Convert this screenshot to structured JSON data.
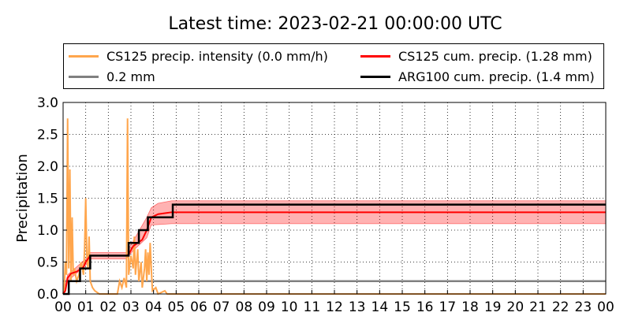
{
  "chart_data": {
    "type": "line",
    "title": "Latest time: 2023-02-21 00:00:00 UTC",
    "ylabel": "Precipitation",
    "xlabel": "",
    "ylim": [
      0,
      3.0
    ],
    "xlim": [
      0,
      24
    ],
    "x_ticks": [
      "00",
      "01",
      "02",
      "03",
      "04",
      "05",
      "06",
      "07",
      "08",
      "09",
      "10",
      "11",
      "12",
      "13",
      "14",
      "15",
      "16",
      "17",
      "18",
      "19",
      "20",
      "21",
      "22",
      "23",
      "00"
    ],
    "y_ticks": [
      "0.0",
      "0.5",
      "1.0",
      "1.5",
      "2.0",
      "2.5",
      "3.0"
    ],
    "grid": true,
    "legend_position": "top",
    "legend": [
      {
        "label": "CS125 precip. intensity (0.0 mm/h)",
        "color": "#ffa64d"
      },
      {
        "label": "CS125 cum. precip. (1.28 mm)",
        "color": "#ff0000"
      },
      {
        "label": "0.2 mm",
        "color": "#808080"
      },
      {
        "label": "ARG100 cum. precip. (1.4 mm)",
        "color": "#000000"
      }
    ],
    "series": [
      {
        "name": "CS125 precip. intensity (0.0 mm/h)",
        "color": "#ffa64d",
        "points": [
          [
            0,
            0
          ],
          [
            0.05,
            0.1
          ],
          [
            0.1,
            0.5
          ],
          [
            0.15,
            0.3
          ],
          [
            0.2,
            2.75
          ],
          [
            0.25,
            0.4
          ],
          [
            0.3,
            1.95
          ],
          [
            0.35,
            0.2
          ],
          [
            0.4,
            1.2
          ],
          [
            0.45,
            0.3
          ],
          [
            0.5,
            0.4
          ],
          [
            0.6,
            0.2
          ],
          [
            0.7,
            0.3
          ],
          [
            0.8,
            0.5
          ],
          [
            0.9,
            0.3
          ],
          [
            0.95,
            0.7
          ],
          [
            1.0,
            1.5
          ],
          [
            1.05,
            0.6
          ],
          [
            1.1,
            0.4
          ],
          [
            1.15,
            0.9
          ],
          [
            1.2,
            0.2
          ],
          [
            1.3,
            0.1
          ],
          [
            1.4,
            0.05
          ],
          [
            1.6,
            0
          ],
          [
            2.4,
            0
          ],
          [
            2.5,
            0.2
          ],
          [
            2.6,
            0.1
          ],
          [
            2.7,
            0.25
          ],
          [
            2.8,
            0.1
          ],
          [
            2.85,
            2.75
          ],
          [
            2.9,
            0.3
          ],
          [
            3.0,
            0.6
          ],
          [
            3.1,
            0.4
          ],
          [
            3.15,
            0.9
          ],
          [
            3.2,
            0.3
          ],
          [
            3.3,
            0.7
          ],
          [
            3.35,
            0.2
          ],
          [
            3.45,
            0.5
          ],
          [
            3.5,
            0.1
          ],
          [
            3.6,
            0.4
          ],
          [
            3.65,
            0.7
          ],
          [
            3.7,
            0.2
          ],
          [
            3.75,
            0.65
          ],
          [
            3.8,
            0.3
          ],
          [
            3.85,
            0.8
          ],
          [
            3.9,
            0.4
          ],
          [
            3.95,
            0.05
          ],
          [
            4.1,
            0.1
          ],
          [
            4.2,
            0
          ],
          [
            4.5,
            0.05
          ],
          [
            4.6,
            0
          ],
          [
            24,
            0
          ]
        ]
      },
      {
        "name": "CS125 cum. precip. (1.28 mm)",
        "color": "#ff0000",
        "points": [
          [
            0,
            0
          ],
          [
            0.1,
            0.05
          ],
          [
            0.2,
            0.25
          ],
          [
            0.35,
            0.32
          ],
          [
            0.6,
            0.35
          ],
          [
            0.9,
            0.42
          ],
          [
            1.0,
            0.5
          ],
          [
            1.2,
            0.6
          ],
          [
            2.8,
            0.6
          ],
          [
            2.9,
            0.62
          ],
          [
            3.1,
            0.75
          ],
          [
            3.5,
            0.85
          ],
          [
            3.7,
            1.0
          ],
          [
            3.9,
            1.2
          ],
          [
            4.2,
            1.25
          ],
          [
            4.6,
            1.27
          ],
          [
            4.8,
            1.28
          ],
          [
            24,
            1.28
          ]
        ],
        "band_lower": [
          [
            0,
            0
          ],
          [
            0.2,
            0.2
          ],
          [
            1.0,
            0.45
          ],
          [
            1.2,
            0.55
          ],
          [
            2.8,
            0.55
          ],
          [
            3.1,
            0.68
          ],
          [
            3.7,
            0.88
          ],
          [
            3.9,
            1.08
          ],
          [
            4.8,
            1.1
          ],
          [
            24,
            1.1
          ]
        ],
        "band_upper": [
          [
            0,
            0
          ],
          [
            0.2,
            0.3
          ],
          [
            1.0,
            0.55
          ],
          [
            1.2,
            0.65
          ],
          [
            2.8,
            0.65
          ],
          [
            3.1,
            0.83
          ],
          [
            3.7,
            1.2
          ],
          [
            3.9,
            1.35
          ],
          [
            4.2,
            1.42
          ],
          [
            4.8,
            1.46
          ],
          [
            24,
            1.46
          ]
        ]
      },
      {
        "name": "0.2 mm",
        "color": "#808080",
        "points": [
          [
            0,
            0.2
          ],
          [
            24,
            0.2
          ]
        ]
      },
      {
        "name": "ARG100 cum. precip. (1.4 mm)",
        "color": "#000000",
        "points": [
          [
            0,
            0
          ],
          [
            0.25,
            0
          ],
          [
            0.25,
            0.2
          ],
          [
            0.75,
            0.2
          ],
          [
            0.75,
            0.4
          ],
          [
            1.2,
            0.4
          ],
          [
            1.2,
            0.6
          ],
          [
            2.9,
            0.6
          ],
          [
            2.9,
            0.8
          ],
          [
            3.35,
            0.8
          ],
          [
            3.35,
            1.0
          ],
          [
            3.75,
            1.0
          ],
          [
            3.75,
            1.2
          ],
          [
            4.85,
            1.2
          ],
          [
            4.85,
            1.4
          ],
          [
            24,
            1.4
          ]
        ]
      }
    ]
  }
}
